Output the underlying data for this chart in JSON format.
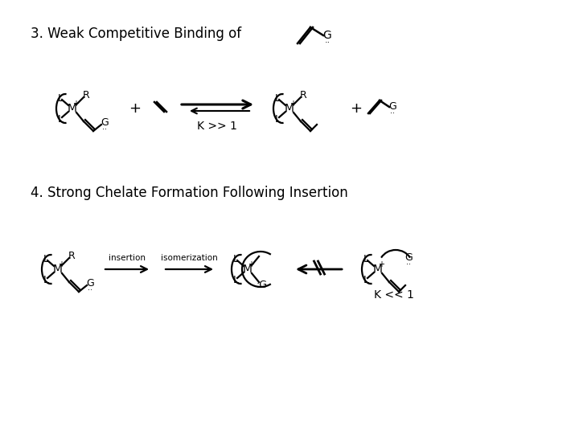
{
  "title1": "3. Weak Competitive Binding of",
  "title2": "4. Strong Chelate Formation Following Insertion",
  "k1_label": "K >> 1",
  "k2_label": "K << 1",
  "insertion_label": "insertion",
  "isomerization_label": "isomerization",
  "bg_color": "#ffffff",
  "line_color": "#000000",
  "text_color": "#000000",
  "title_fontsize": 12,
  "label_fontsize": 7.5,
  "fig_width": 7.2,
  "fig_height": 5.4,
  "dpi": 100
}
